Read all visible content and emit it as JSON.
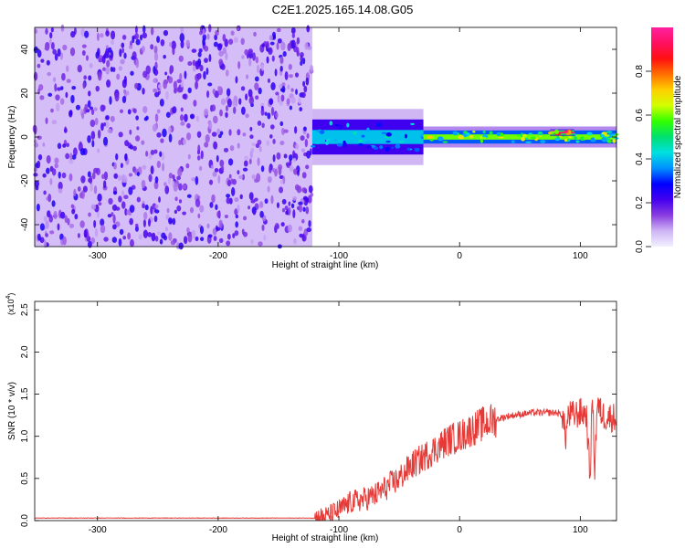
{
  "figure": {
    "title": "C2E1.2025.165.14.08.G05"
  },
  "chart_data": [
    {
      "type": "heatmap",
      "xlabel": "Height of straight line (km)",
      "ylabel": "Frequency (Hz)",
      "xlim": [
        -352,
        130
      ],
      "ylim": [
        -50,
        50
      ],
      "x_ticks": [
        -300,
        -200,
        -100,
        0,
        100
      ],
      "y_ticks": [
        -40,
        -20,
        0,
        20,
        40
      ],
      "colorbar": {
        "label": "Normalized spectral amplitude",
        "range": [
          0,
          1
        ],
        "ticks": [
          "0.0",
          "0.2",
          "0.4",
          "0.6",
          "0.8"
        ],
        "tick_values": [
          0,
          0.2,
          0.4,
          0.6,
          0.8
        ],
        "colors": [
          "#f2f0ff",
          "#cfb5f5",
          "#8a3ee0",
          "#4400ee",
          "#0000ff",
          "#0090ff",
          "#00e0e0",
          "#00e070",
          "#30ff00",
          "#d0ff00",
          "#ffd000",
          "#ff7000",
          "#ff1010",
          "#ff1060",
          "#ff20a0"
        ]
      },
      "regions": [
        {
          "x_range": [
            -352,
            -122
          ],
          "description": "broadband noise",
          "freq_range": [
            -50,
            50
          ],
          "amplitude": 0.2
        },
        {
          "x_range": [
            -122,
            -30
          ],
          "center_freq": 0,
          "spread_hz": 8,
          "amplitude": 0.4
        },
        {
          "x_range": [
            -30,
            130
          ],
          "center_freq": 0,
          "spread_hz": 3,
          "amplitude": 0.6
        },
        {
          "x_range": [
            75,
            95
          ],
          "center_freq": 2,
          "spread_hz": 1,
          "amplitude": 0.95
        }
      ]
    },
    {
      "type": "line",
      "xlabel": "Height of straight line (km)",
      "ylabel": "SNR (10 * v/v)",
      "y_multiplier": "(x10^4)",
      "y_multiplier_base": "(x10",
      "y_multiplier_exp": "4",
      "xlim": [
        -352,
        130
      ],
      "ylim": [
        0,
        2.6
      ],
      "x_ticks": [
        -300,
        -200,
        -100,
        0,
        100
      ],
      "y_ticks": [
        "0.0",
        "0.5",
        "1.0",
        "1.5",
        "2.0",
        "2.5"
      ],
      "y_tick_values": [
        0,
        0.5,
        1.0,
        1.5,
        2.0,
        2.5
      ],
      "color": "#e63a37",
      "series": [
        {
          "x": [
            -352,
            -300,
            -250,
            -200,
            -150,
            -120,
            -110,
            -100,
            -90,
            -80,
            -70,
            -60,
            -50,
            -40,
            -30,
            -20,
            -10,
            0,
            10,
            20,
            30,
            40,
            50,
            60,
            70,
            80,
            85,
            88,
            90,
            95,
            100,
            105,
            108,
            110,
            112,
            114,
            116,
            120,
            130
          ],
          "y": [
            0.03,
            0.03,
            0.03,
            0.03,
            0.03,
            0.03,
            0.05,
            0.12,
            0.22,
            0.25,
            0.3,
            0.4,
            0.5,
            0.65,
            0.75,
            0.85,
            0.95,
            1.0,
            1.08,
            1.15,
            1.2,
            1.24,
            1.26,
            1.28,
            1.28,
            1.28,
            1.25,
            1.0,
            1.25,
            1.25,
            1.28,
            1.27,
            0.5,
            1.5,
            0.6,
            1.4,
            1.3,
            1.24,
            1.22
          ]
        }
      ]
    }
  ]
}
